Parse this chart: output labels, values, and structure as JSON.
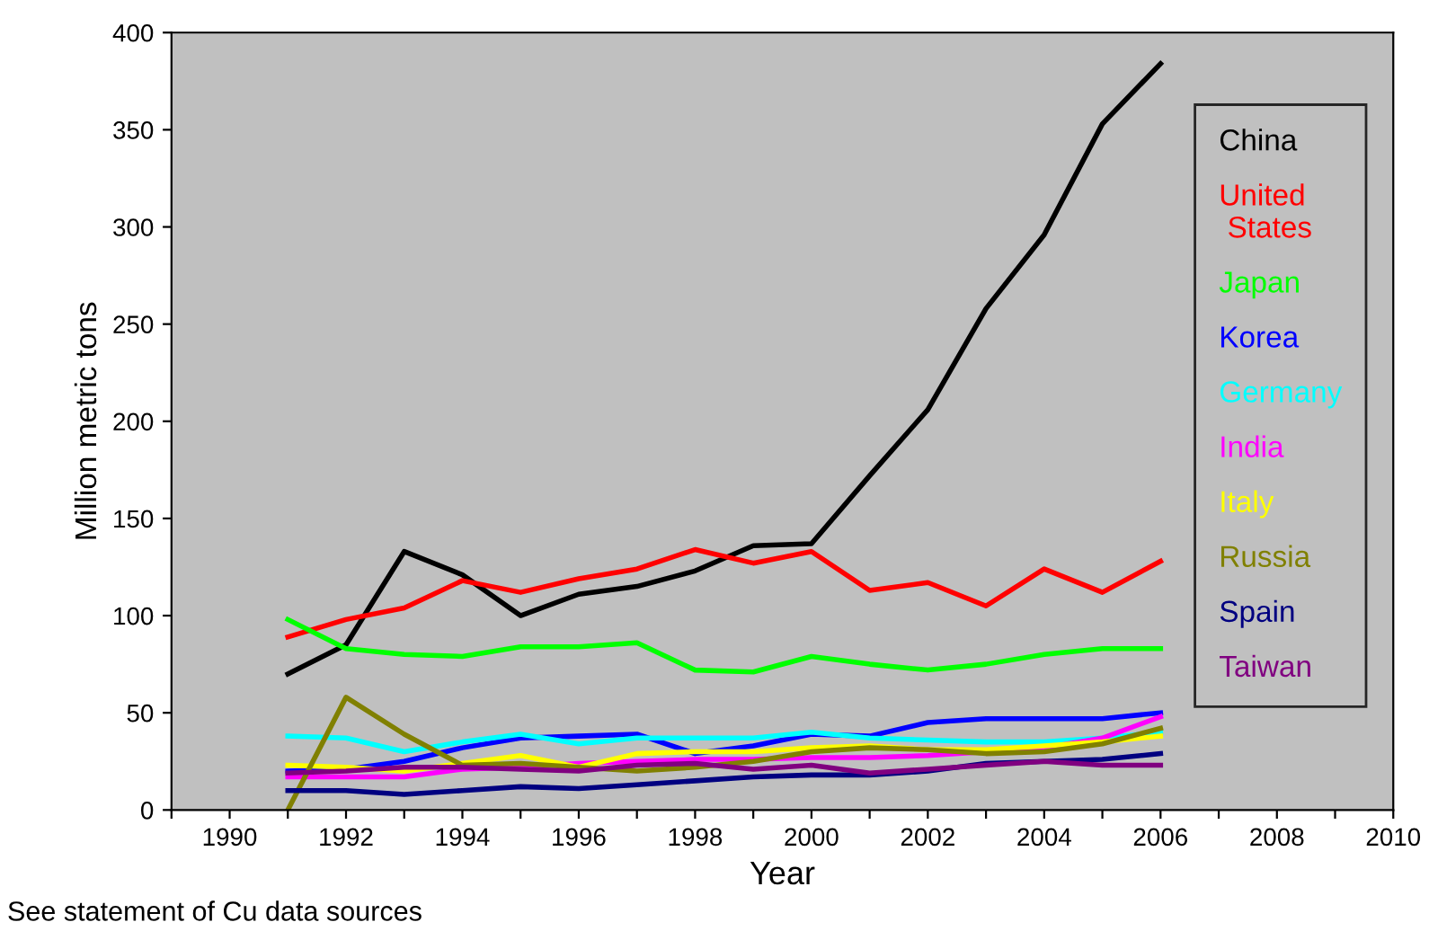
{
  "chart_data": {
    "type": "line",
    "xlabel": "Year",
    "ylabel": "Million metric tons",
    "annotations": [
      "See statement of Cu data sources"
    ],
    "x": [
      1991,
      1992,
      1993,
      1994,
      1995,
      1996,
      1997,
      1998,
      1999,
      2000,
      2001,
      2002,
      2003,
      2004,
      2005,
      2006
    ],
    "series": [
      {
        "name": "China",
        "color": "#000000",
        "values": [
          70,
          85,
          133,
          121,
          100,
          111,
          115,
          123,
          136,
          137,
          172,
          206,
          258,
          296,
          353,
          384
        ]
      },
      {
        "name": "United\n States",
        "color": "#ff0000",
        "values": [
          89,
          98,
          104,
          118,
          112,
          119,
          124,
          134,
          127,
          133,
          113,
          117,
          105,
          124,
          112,
          128
        ]
      },
      {
        "name": "Japan",
        "color": "#00ff00",
        "values": [
          98,
          83,
          80,
          79,
          84,
          84,
          86,
          72,
          71,
          79,
          75,
          72,
          75,
          80,
          83,
          83
        ]
      },
      {
        "name": "Korea",
        "color": "#0000ff",
        "values": [
          20,
          21,
          25,
          32,
          37,
          38,
          39,
          29,
          33,
          39,
          38,
          45,
          47,
          47,
          47,
          50
        ]
      },
      {
        "name": "Germany",
        "color": "#00ffff",
        "values": [
          38,
          37,
          30,
          35,
          39,
          34,
          37,
          37,
          37,
          40,
          37,
          36,
          35,
          35,
          37,
          40
        ]
      },
      {
        "name": "India",
        "color": "#ff00ff",
        "values": [
          17,
          17,
          17,
          21,
          22,
          24,
          25,
          26,
          26,
          27,
          27,
          28,
          30,
          32,
          37,
          48
        ]
      },
      {
        "name": "Italy",
        "color": "#ffff00",
        "values": [
          23,
          22,
          20,
          24,
          28,
          22,
          29,
          30,
          30,
          32,
          33,
          31,
          31,
          33,
          35,
          38
        ]
      },
      {
        "name": "Russia",
        "color": "#808000",
        "values": [
          0,
          58,
          39,
          23,
          24,
          22,
          20,
          22,
          25,
          30,
          32,
          31,
          29,
          30,
          34,
          42
        ]
      },
      {
        "name": "Spain",
        "color": "#000080",
        "values": [
          10,
          10,
          8,
          10,
          12,
          11,
          13,
          15,
          17,
          18,
          18,
          20,
          24,
          25,
          26,
          29
        ]
      },
      {
        "name": "Taiwan",
        "color": "#800080",
        "values": [
          19,
          20,
          22,
          22,
          21,
          20,
          23,
          24,
          21,
          23,
          19,
          21,
          23,
          25,
          23,
          23
        ]
      }
    ],
    "xlim": [
      1989,
      2010
    ],
    "xticks": [
      {
        "value": 1989,
        "label": null
      },
      1990,
      {
        "value": 1991,
        "label": null
      },
      1992,
      {
        "value": 1993,
        "label": null
      },
      1994,
      {
        "value": 1995,
        "label": null
      },
      1996,
      {
        "value": 1997,
        "label": null
      },
      1998,
      {
        "value": 1999,
        "label": null
      },
      2000,
      {
        "value": 2001,
        "label": null
      },
      2002,
      {
        "value": 2003,
        "label": null
      },
      2004,
      {
        "value": 2005,
        "label": null
      },
      2006,
      {
        "value": 2007,
        "label": null
      },
      2008,
      {
        "value": 2009,
        "label": null
      },
      2010
    ],
    "ylim": [
      0,
      400
    ],
    "yticks": [
      0,
      50,
      100,
      150,
      200,
      250,
      300,
      350,
      400
    ],
    "grid": false,
    "legend": "right",
    "marker": "none",
    "line_style": "solid"
  }
}
